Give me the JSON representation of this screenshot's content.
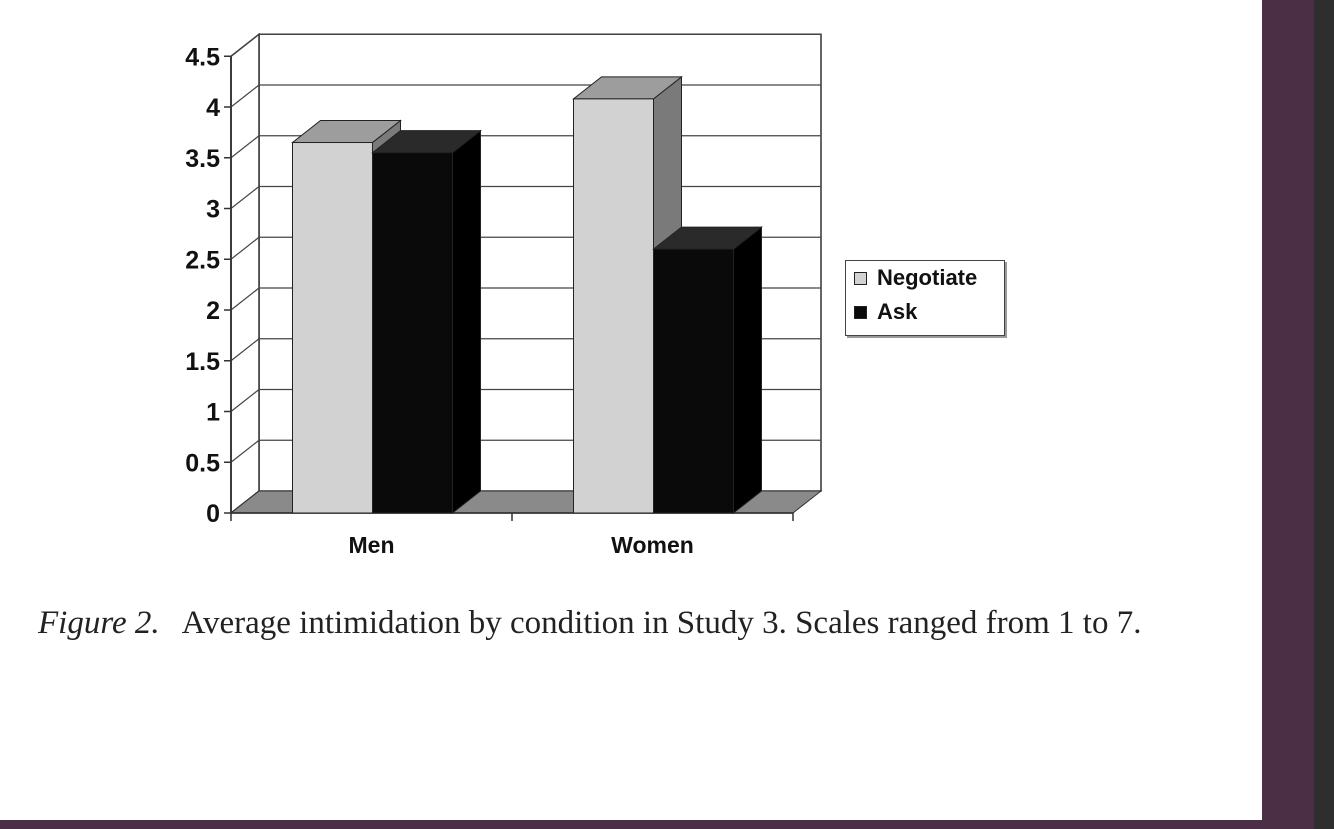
{
  "chart_data": {
    "type": "bar",
    "title": "",
    "xlabel": "",
    "ylabel": "",
    "categories": [
      "Men",
      "Women"
    ],
    "series": [
      {
        "name": "Negotiate",
        "values": [
          3.65,
          4.08
        ],
        "color": "#d2d2d2"
      },
      {
        "name": "Ask",
        "values": [
          3.55,
          2.6
        ],
        "color": "#0a0a0a"
      }
    ],
    "ylim": [
      0,
      4.5
    ],
    "yticks": [
      "0",
      "0.5",
      "1",
      "1.5",
      "2",
      "2.5",
      "3",
      "3.5",
      "4",
      "4.5"
    ],
    "grid": true,
    "legend_position": "right",
    "style": "3d-column"
  },
  "caption": {
    "label": "Figure 2.",
    "text": "Average intimidation by condition in Study 3. Scales ranged from 1 to 7."
  }
}
